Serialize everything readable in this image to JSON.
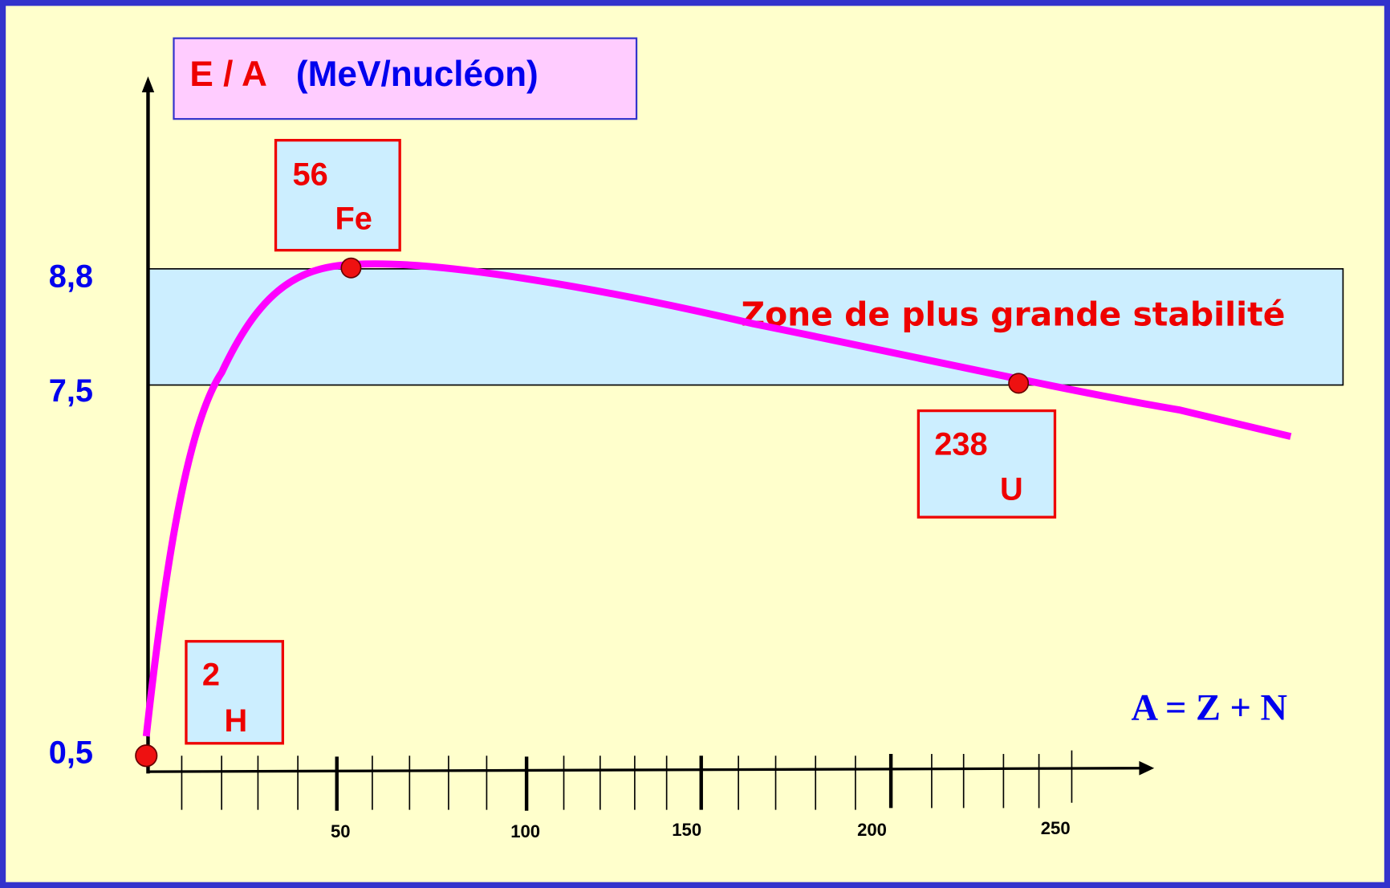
{
  "header": {
    "title_symbol": "E / A",
    "title_unit": "(MeV/nucléon)"
  },
  "y_labels": [
    "8,8",
    "7,5",
    "0,5"
  ],
  "x_labels": [
    "50",
    "100",
    "150",
    "200",
    "250"
  ],
  "zone_label": "Zone de plus grande stabilité",
  "x_axis_label": "A = Z + N",
  "nuclides": [
    {
      "mass": "56",
      "symbol": "Fe"
    },
    {
      "mass": "238",
      "symbol": "U"
    },
    {
      "mass": "2",
      "symbol": "H"
    }
  ]
}
